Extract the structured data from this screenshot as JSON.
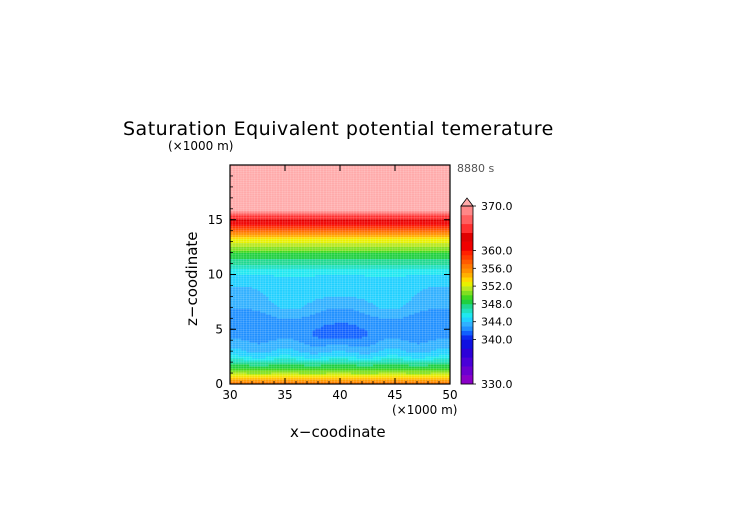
{
  "chart_data": {
    "type": "heatmap",
    "title": "Saturation Equivalent potential temerature",
    "time_label": "8880 s",
    "xlabel": "x−coodinate",
    "ylabel": "z−coodinate",
    "x_unit": "(×1000 m)",
    "y_unit": "(×1000 m)",
    "xlim": [
      30,
      50
    ],
    "ylim": [
      0,
      20
    ],
    "x_ticks": [
      "30",
      "35",
      "40",
      "45",
      "50"
    ],
    "y_ticks": [
      "0",
      "5",
      "10",
      "15"
    ],
    "colorbar": {
      "min": 330,
      "max": 370,
      "extend": "max",
      "labels": [
        "370.0",
        "360.0",
        "356.0",
        "352.0",
        "348.0",
        "344.0",
        "340.0",
        "330.0"
      ],
      "levels": [
        330,
        332,
        334,
        336,
        338,
        340,
        341,
        342,
        343,
        344,
        345,
        346,
        347,
        348,
        349,
        350,
        351,
        352,
        353,
        354,
        355,
        356,
        357,
        358,
        359,
        360,
        362,
        364,
        366,
        368,
        370
      ],
      "colors": [
        "#8a00c8",
        "#6a00d0",
        "#4a00d8",
        "#2c00d8",
        "#1010e0",
        "#0a2af0",
        "#1060ff",
        "#2090ff",
        "#30b0ff",
        "#20d0ff",
        "#20e8f0",
        "#20e0c0",
        "#20d890",
        "#20d040",
        "#40d820",
        "#80e020",
        "#b8e820",
        "#e8f000",
        "#ffd800",
        "#ffb000",
        "#ff9000",
        "#ff7800",
        "#ff5a00",
        "#ff3c00",
        "#ff2000",
        "#f00000",
        "#e00000",
        "#ff3030",
        "#ff6060",
        "#ff8888",
        "#ffaaaa"
      ]
    },
    "profile": {
      "description": "approximate field value vs height (z in km) averaged across x",
      "z": [
        0,
        0.5,
        1.0,
        1.5,
        2.0,
        2.5,
        3.0,
        3.5,
        4.0,
        4.5,
        5.0,
        6.0,
        7.0,
        8.0,
        9.0,
        10.0,
        10.5,
        11.0,
        11.5,
        12.0,
        12.5,
        13.0,
        13.5,
        14.0,
        14.5,
        15.0,
        15.5,
        16.0,
        20.0
      ],
      "value": [
        357,
        354,
        351,
        349,
        347,
        345,
        344,
        343.5,
        343,
        342.5,
        342.5,
        342.5,
        343,
        343.5,
        344,
        345,
        346,
        347,
        348,
        349,
        351,
        352,
        354,
        357,
        360,
        363,
        367,
        371,
        372
      ]
    },
    "grid": true
  }
}
